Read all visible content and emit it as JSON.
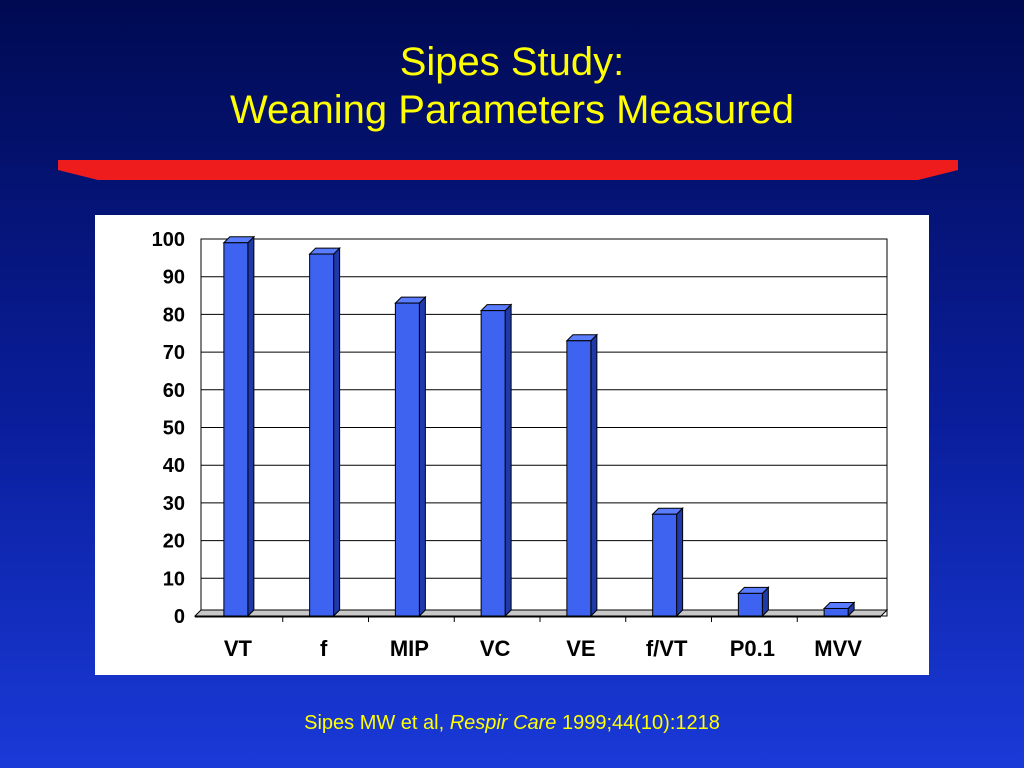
{
  "slide": {
    "title_line1": "Sipes Study:",
    "title_line2": "Weaning Parameters Measured",
    "citation_author": "Sipes MW et al, ",
    "citation_journal": "Respir Care",
    "citation_ref": " 1999;44(10):1218",
    "colors": {
      "background_top": "#000a52",
      "background_bottom": "#1a3ad8",
      "title": "#ffff00",
      "divider": "#ee1c1c",
      "bar": "#3d63f0"
    }
  },
  "chart_data": {
    "type": "bar",
    "categories": [
      "VT",
      "f",
      "MIP",
      "VC",
      "VE",
      "f/VT",
      "P0.1",
      "MVV"
    ],
    "values": [
      99,
      96,
      83,
      81,
      73,
      27,
      6,
      2
    ],
    "yticks": [
      0,
      10,
      20,
      30,
      40,
      50,
      60,
      70,
      80,
      90,
      100
    ],
    "ylim": [
      0,
      100
    ],
    "grid": true,
    "legend": "none",
    "style": "3d-bar"
  }
}
